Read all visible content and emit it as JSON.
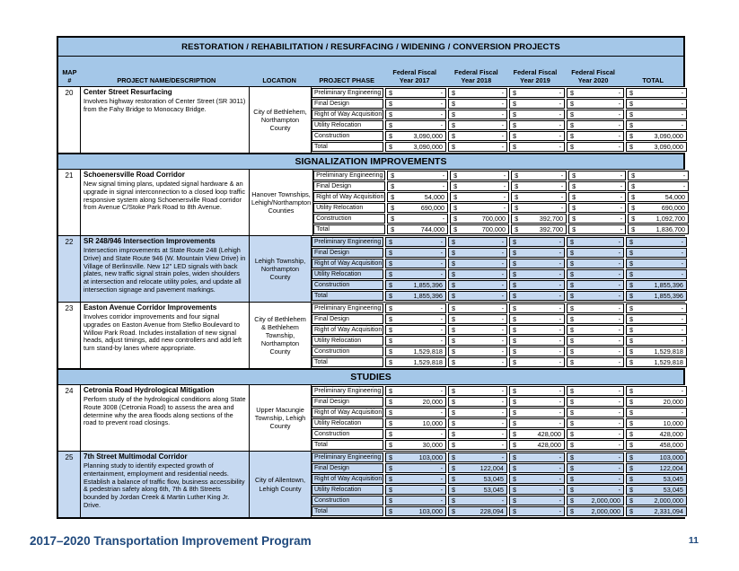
{
  "page": {
    "footer_title": "2017–2020 Transportation Improvement Program",
    "page_number": "11"
  },
  "colors": {
    "header_blue": "#a4c7e8",
    "highlight_blue": "#c6d9f1",
    "footer_navy": "#1f497d"
  },
  "table": {
    "title": "RESTORATION / REHABILITATION / RESURFACING / WIDENING / CONVERSION PROJECTS",
    "headers": {
      "map_top": "MAP",
      "map_bottom": "#",
      "project": "PROJECT NAME/DESCRIPTION",
      "location": "LOCATION",
      "phase": "PROJECT PHASE",
      "total": "TOTAL"
    },
    "year_headers": [
      {
        "top": "Federal Fiscal",
        "bottom": "Year 2017"
      },
      {
        "top": "Federal Fiscal",
        "bottom": "Year 2018"
      },
      {
        "top": "Federal Fiscal",
        "bottom": "Year 2019"
      },
      {
        "top": "Federal Fiscal",
        "bottom": "Year 2020"
      }
    ],
    "sections": [
      {
        "header": null,
        "projects": [
          {
            "map": "20",
            "name": "Center Street Resurfacing",
            "description": "Involves highway restoration of Center Street (SR 3011) from the Fahy Bridge to Monocacy Bridge.",
            "location": "City of Bethlehem, Northampton County",
            "highlighted": false,
            "phases": [
              {
                "label": "Preliminary Engineering",
                "values": [
                  "-",
                  "-",
                  "-",
                  "-",
                  "-"
                ]
              },
              {
                "label": "Final Design",
                "values": [
                  "-",
                  "-",
                  "-",
                  "-",
                  "-"
                ]
              },
              {
                "label": "Right of Way Acquisition",
                "values": [
                  "-",
                  "-",
                  "-",
                  "-",
                  "-"
                ]
              },
              {
                "label": "Utility Relocation",
                "values": [
                  "-",
                  "-",
                  "-",
                  "-",
                  "-"
                ]
              },
              {
                "label": "Construction",
                "values": [
                  "3,090,000",
                  "-",
                  "-",
                  "-",
                  "3,090,000"
                ]
              },
              {
                "label": "Total",
                "values": [
                  "3,090,000",
                  "-",
                  "-",
                  "-",
                  "3,090,000"
                ]
              }
            ]
          }
        ]
      },
      {
        "header": "SIGNALIZATION IMPROVEMENTS",
        "projects": [
          {
            "map": "21",
            "name": "Schoenersville Road Corridor",
            "description": "New signal timing plans, updated signal hardware & an upgrade in signal interconnection to a closed loop traffic responsive system along Schoenersville Road corridor from Avenue C/Stoke Park Road to 8th Avenue.",
            "location": "Hanover Townships, Lehigh/Northampton Counties",
            "highlighted": false,
            "phases": [
              {
                "label": "Preliminary Engineering",
                "values": [
                  "-",
                  "-",
                  "-",
                  "-",
                  "-"
                ]
              },
              {
                "label": "Final Design",
                "values": [
                  "-",
                  "-",
                  "-",
                  "-",
                  "-"
                ]
              },
              {
                "label": "Right of Way Acquisition",
                "values": [
                  "54,000",
                  "-",
                  "-",
                  "-",
                  "54,000"
                ]
              },
              {
                "label": "Utility Relocation",
                "values": [
                  "690,000",
                  "-",
                  "-",
                  "-",
                  "690,000"
                ]
              },
              {
                "label": "Construction",
                "values": [
                  "-",
                  "700,000",
                  "392,700",
                  "-",
                  "1,092,700"
                ]
              },
              {
                "label": "Total",
                "values": [
                  "744,000",
                  "700,000",
                  "392,700",
                  "-",
                  "1,836,700"
                ]
              }
            ]
          },
          {
            "map": "22",
            "name": "SR 248/946 Intersection Improvements",
            "description": "Intersection improvements at State Route 248 (Lehigh Drive) and State Route 946 (W. Mountain View Drive) in Village of Berlinsville. New 12\" LED signals with back plates, new traffic signal strain poles, widen shoulders at intersection and relocate utility poles, and update all intersection signage and pavement markings.",
            "location": "Lehigh Township, Northampton County",
            "highlighted": true,
            "phases": [
              {
                "label": "Preliminary Engineering",
                "values": [
                  "-",
                  "-",
                  "-",
                  "-",
                  "-"
                ]
              },
              {
                "label": "Final Design",
                "values": [
                  "-",
                  "-",
                  "-",
                  "-",
                  "-"
                ]
              },
              {
                "label": "Right of Way Acquisition",
                "values": [
                  "-",
                  "-",
                  "-",
                  "-",
                  "-"
                ]
              },
              {
                "label": "Utility Relocation",
                "values": [
                  "-",
                  "-",
                  "-",
                  "-",
                  "-"
                ]
              },
              {
                "label": "Construction",
                "values": [
                  "1,855,396",
                  "-",
                  "-",
                  "-",
                  "1,855,396"
                ]
              },
              {
                "label": "Total",
                "values": [
                  "1,855,396",
                  "-",
                  "-",
                  "-",
                  "1,855,396"
                ]
              }
            ]
          },
          {
            "map": "23",
            "name": "Easton Avenue Corridor Improvements",
            "description": "Involves corridor improvements and four signal upgrades on Easton Avenue from Stefko Boulevard to Willow Park Road. Includes installation of new signal heads, adjust timings, add new controllers and add left turn stand-by lanes where appropriate.",
            "location": "City of Bethlehem & Bethlehem Township, Northampton County",
            "highlighted": false,
            "phases": [
              {
                "label": "Preliminary Engineering",
                "values": [
                  "-",
                  "-",
                  "-",
                  "-",
                  "-"
                ]
              },
              {
                "label": "Final Design",
                "values": [
                  "-",
                  "-",
                  "-",
                  "-",
                  "-"
                ]
              },
              {
                "label": "Right of Way Acquisition",
                "values": [
                  "-",
                  "-",
                  "-",
                  "-",
                  "-"
                ]
              },
              {
                "label": "Utility Relocation",
                "values": [
                  "-",
                  "-",
                  "-",
                  "-",
                  "-"
                ]
              },
              {
                "label": "Construction",
                "values": [
                  "1,529,818",
                  "-",
                  "-",
                  "-",
                  "1,529,818"
                ]
              },
              {
                "label": "Total",
                "values": [
                  "1,529,818",
                  "-",
                  "-",
                  "-",
                  "1,529,818"
                ]
              }
            ]
          }
        ]
      },
      {
        "header": "STUDIES",
        "projects": [
          {
            "map": "24",
            "name": "Cetronia Road Hydrological Mitigation",
            "description": "Perform study of the hydrological conditions along State Route 3008 (Cetronia Road) to assess the area and determine why the area floods along sections of the road to prevent road closings.",
            "location": "Upper Macungie Township, Lehigh County",
            "highlighted": false,
            "phases": [
              {
                "label": "Preliminary Engineering",
                "values": [
                  "-",
                  "-",
                  "-",
                  "-",
                  "-"
                ]
              },
              {
                "label": "Final Design",
                "values": [
                  "20,000",
                  "-",
                  "-",
                  "-",
                  "20,000"
                ]
              },
              {
                "label": "Right of Way Acquisition",
                "values": [
                  "-",
                  "-",
                  "-",
                  "-",
                  "-"
                ]
              },
              {
                "label": "Utility Relocation",
                "values": [
                  "10,000",
                  "-",
                  "-",
                  "-",
                  "10,000"
                ]
              },
              {
                "label": "Construction",
                "values": [
                  "-",
                  "-",
                  "428,000",
                  "-",
                  "428,000"
                ]
              },
              {
                "label": "Total",
                "values": [
                  "30,000",
                  "-",
                  "428,000",
                  "-",
                  "458,000"
                ]
              }
            ]
          },
          {
            "map": "25",
            "name": "7th Street Multimodal Corridor",
            "description": "Planning study to identify expected growth of entertainment, employment and residential needs. Establish a balance of traffic flow, business accessibility & pedestrian safety along 6th, 7th & 8th Streets bounded by Jordan Creek & Martin Luther King Jr. Drive.",
            "location": "City of Allentown, Lehigh County",
            "highlighted": true,
            "phases": [
              {
                "label": "Preliminary Engineering",
                "values": [
                  "103,000",
                  "-",
                  "-",
                  "-",
                  "103,000"
                ]
              },
              {
                "label": "Final Design",
                "values": [
                  "-",
                  "122,004",
                  "-",
                  "-",
                  "122,004"
                ]
              },
              {
                "label": "Right of Way Acquisition",
                "values": [
                  "-",
                  "53,045",
                  "-",
                  "-",
                  "53,045"
                ]
              },
              {
                "label": "Utility Relocation",
                "values": [
                  "-",
                  "53,045",
                  "-",
                  "-",
                  "53,045"
                ]
              },
              {
                "label": "Construction",
                "values": [
                  "-",
                  "-",
                  "-",
                  "2,000,000",
                  "2,000,000"
                ]
              },
              {
                "label": "Total",
                "values": [
                  "103,000",
                  "228,094",
                  "-",
                  "2,000,000",
                  "2,331,094"
                ]
              }
            ]
          }
        ]
      }
    ]
  }
}
